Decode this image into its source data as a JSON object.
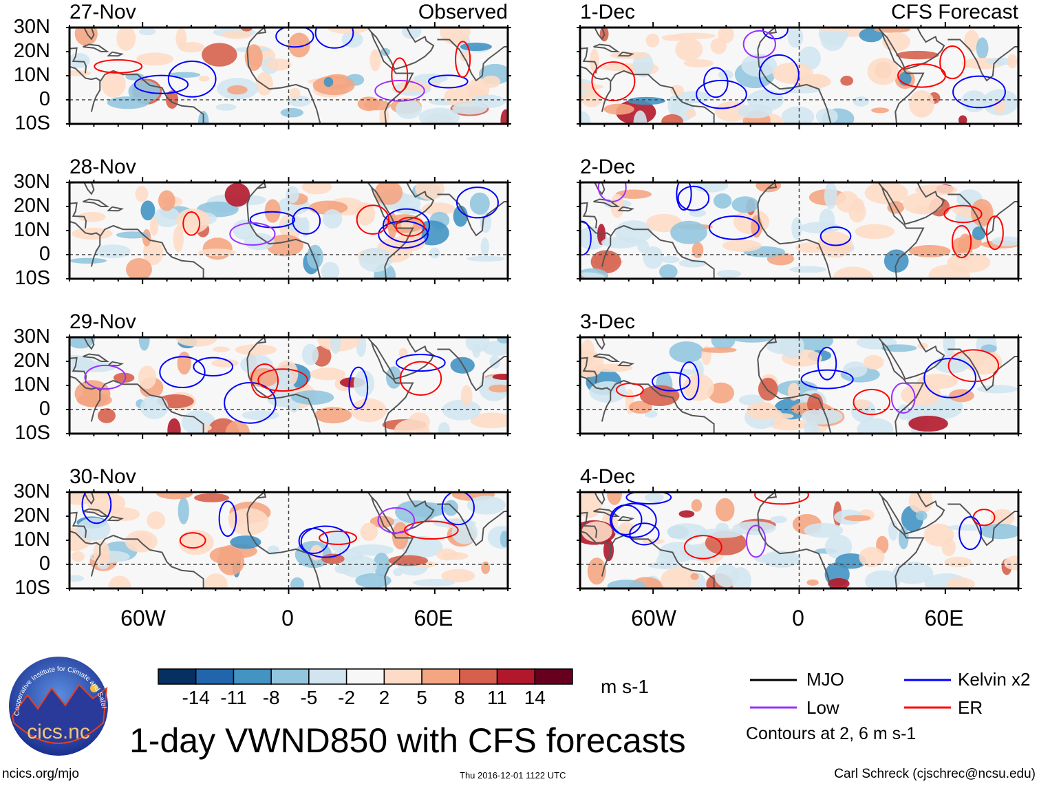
{
  "panels": {
    "left_header": "Observed",
    "right_header": "CFS Forecast",
    "left": [
      "27-Nov",
      "28-Nov",
      "29-Nov",
      "30-Nov"
    ],
    "right": [
      "1-Dec",
      "2-Dec",
      "3-Dec",
      "4-Dec"
    ]
  },
  "axes": {
    "lat_labels": [
      "30N",
      "20N",
      "10N",
      "0",
      "10S"
    ],
    "lat_values": [
      30,
      20,
      10,
      0,
      -10
    ],
    "lon_labels": [
      "60W",
      "0",
      "60E"
    ],
    "lon_values": [
      -60,
      0,
      60
    ],
    "lon_range": [
      -90,
      90
    ],
    "lat_range": [
      -10,
      30
    ]
  },
  "colorbar": {
    "labels": [
      "-14",
      "-11",
      "-8",
      "-5",
      "-2",
      "2",
      "5",
      "8",
      "11",
      "14"
    ],
    "colors": [
      "#053061",
      "#2166ac",
      "#4393c3",
      "#92c5de",
      "#d1e5f0",
      "#f7f7f7",
      "#fddbc7",
      "#f4a582",
      "#d6604d",
      "#b2182b",
      "#67001f"
    ],
    "units": "m s-1"
  },
  "legend": {
    "items": [
      {
        "label": "MJO",
        "color": "#000000"
      },
      {
        "label": "Kelvin x2",
        "color": "#0000ff"
      },
      {
        "label": "Low",
        "color": "#9b30ff"
      },
      {
        "label": "ER",
        "color": "#ff0000"
      }
    ],
    "note": "Contours at 2, 6 m s-1"
  },
  "title": "1-day VWND850 with CFS forecasts",
  "logo": {
    "name": "cics.nc",
    "ring": "Cooperative Institute for Climate and Satellites"
  },
  "footer": {
    "left": "ncics.org/mjo",
    "center": "Thu 2016-12-01 1122 UTC",
    "right": "Carl Schreck (cjschrec@ncsu.edu)"
  }
}
